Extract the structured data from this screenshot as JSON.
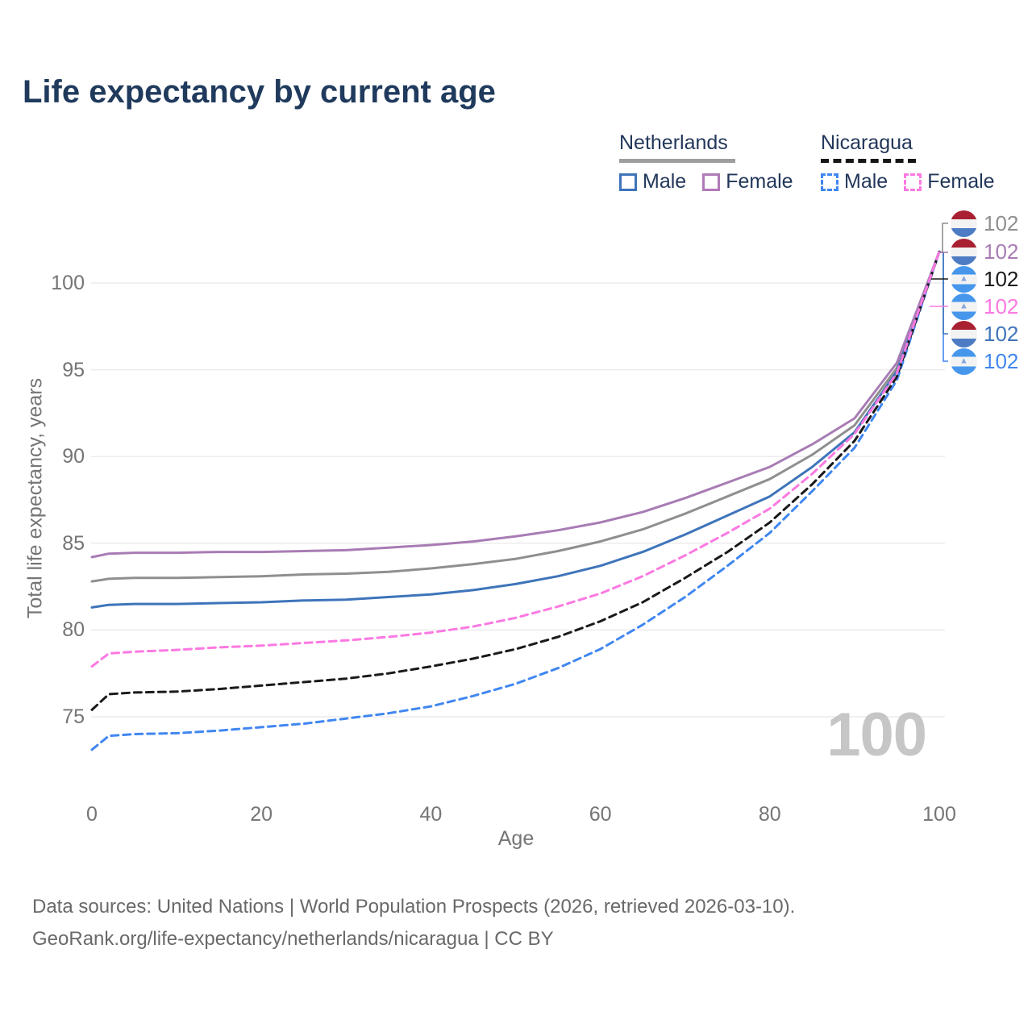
{
  "title": "Life expectancy by current age",
  "legend": {
    "groups": [
      {
        "id": "netherlands",
        "label": "Netherlands",
        "line_style": "solid",
        "line_color": "#9e9e9e",
        "items": [
          {
            "label": "Male",
            "color": "#3e74ba",
            "dashed": false
          },
          {
            "label": "Female",
            "color": "#b07ab8",
            "dashed": false
          }
        ]
      },
      {
        "id": "nicaragua",
        "label": "Nicaragua",
        "line_style": "dashed",
        "line_color": "#161616",
        "items": [
          {
            "label": "Male",
            "color": "#4187f0",
            "dashed": true
          },
          {
            "label": "Female",
            "color": "#fb79e2",
            "dashed": true
          }
        ]
      }
    ]
  },
  "chart_data": {
    "type": "line",
    "title": "Life expectancy by current age",
    "xlabel": "Age",
    "ylabel": "Total life expectancy, years",
    "xlim": [
      0,
      100
    ],
    "ylim": [
      72.5,
      102.5
    ],
    "xticks": [
      0,
      20,
      40,
      60,
      80,
      100
    ],
    "yticks": [
      75,
      80,
      85,
      90,
      95,
      100
    ],
    "grid": true,
    "legend_position": "top-right",
    "x": [
      0,
      2,
      5,
      10,
      15,
      20,
      25,
      30,
      35,
      40,
      45,
      50,
      55,
      60,
      65,
      70,
      75,
      80,
      85,
      90,
      95,
      100
    ],
    "series": [
      {
        "id": "netherlands-total",
        "name": "Netherlands — Both sexes",
        "color": "#8f8f8f",
        "dashed": false,
        "end_value": 102,
        "values": [
          82.8,
          82.95,
          83.0,
          83.0,
          83.05,
          83.1,
          83.2,
          83.25,
          83.35,
          83.55,
          83.8,
          84.1,
          84.55,
          85.1,
          85.8,
          86.7,
          87.7,
          88.7,
          90.1,
          91.8,
          95.1,
          101.8
        ]
      },
      {
        "id": "netherlands-male",
        "name": "Netherlands — Male",
        "color": "#3e74ba",
        "dashed": false,
        "end_value": 102,
        "values": [
          81.3,
          81.45,
          81.5,
          81.5,
          81.55,
          81.6,
          81.7,
          81.75,
          81.9,
          82.05,
          82.3,
          82.65,
          83.1,
          83.7,
          84.5,
          85.5,
          86.6,
          87.7,
          89.4,
          91.4,
          94.9,
          101.8
        ]
      },
      {
        "id": "netherlands-female",
        "name": "Netherlands — Female",
        "color": "#a87cb4",
        "dashed": false,
        "end_value": 102,
        "values": [
          84.2,
          84.4,
          84.45,
          84.45,
          84.5,
          84.5,
          84.55,
          84.6,
          84.75,
          84.9,
          85.1,
          85.4,
          85.75,
          86.2,
          86.8,
          87.6,
          88.5,
          89.4,
          90.7,
          92.2,
          95.4,
          101.8
        ]
      },
      {
        "id": "nicaragua-male",
        "name": "Nicaragua — Male",
        "color": "#4187f0",
        "dashed": true,
        "end_value": 102,
        "values": [
          73.1,
          73.9,
          74.0,
          74.05,
          74.2,
          74.4,
          74.6,
          74.9,
          75.2,
          75.6,
          76.2,
          76.9,
          77.8,
          78.9,
          80.3,
          81.9,
          83.7,
          85.6,
          88.0,
          90.5,
          94.4,
          101.8
        ]
      },
      {
        "id": "nicaragua-total",
        "name": "Nicaragua — Both sexes",
        "color": "#1a1a1a",
        "dashed": true,
        "end_value": 102,
        "values": [
          75.4,
          76.3,
          76.4,
          76.45,
          76.6,
          76.8,
          77.0,
          77.2,
          77.5,
          77.9,
          78.35,
          78.9,
          79.6,
          80.5,
          81.6,
          83.0,
          84.5,
          86.2,
          88.4,
          90.9,
          94.6,
          101.8
        ]
      },
      {
        "id": "nicaragua-female",
        "name": "Nicaragua — Female",
        "color": "#fb79e2",
        "dashed": true,
        "end_value": 102,
        "values": [
          77.9,
          78.65,
          78.75,
          78.85,
          79.0,
          79.1,
          79.25,
          79.4,
          79.6,
          79.85,
          80.2,
          80.7,
          81.35,
          82.1,
          83.1,
          84.3,
          85.6,
          87.0,
          89.0,
          91.3,
          94.8,
          101.8
        ]
      }
    ]
  },
  "right_labels": [
    {
      "series": "netherlands-total",
      "flag": "netherlands",
      "value": "102",
      "color": "#8f8f8f"
    },
    {
      "series": "netherlands-female",
      "flag": "netherlands",
      "value": "102",
      "color": "#a87cb4"
    },
    {
      "series": "nicaragua-total",
      "flag": "nicaragua",
      "value": "102",
      "color": "#1a1a1a"
    },
    {
      "series": "nicaragua-female",
      "flag": "nicaragua",
      "value": "102",
      "color": "#fb79e2"
    },
    {
      "series": "netherlands-male",
      "flag": "netherlands",
      "value": "102",
      "color": "#3e74ba"
    },
    {
      "series": "nicaragua-male",
      "flag": "nicaragua",
      "value": "102",
      "color": "#4187f0"
    }
  ],
  "icons": {
    "nicaragua_emblem": "▲"
  },
  "watermark_age": "100",
  "footer": {
    "line1": "Data sources: United Nations | World Population Prospects (2026, retrieved 2026-03-10).",
    "line2_link": "GeoRank.org/life-expectancy/netherlands/nicaragua",
    "line2_suffix": " | CC BY"
  },
  "colors": {
    "title_text": "#1f3a5c",
    "axis_text": "#757575",
    "gridline": "#ececec",
    "watermark": "#c6c6c6",
    "footer_text": "#696969",
    "flag_nl_red": "#a82032",
    "flag_nl_blue": "#4d7cc4",
    "flag_ni_blue": "#4697ec"
  }
}
